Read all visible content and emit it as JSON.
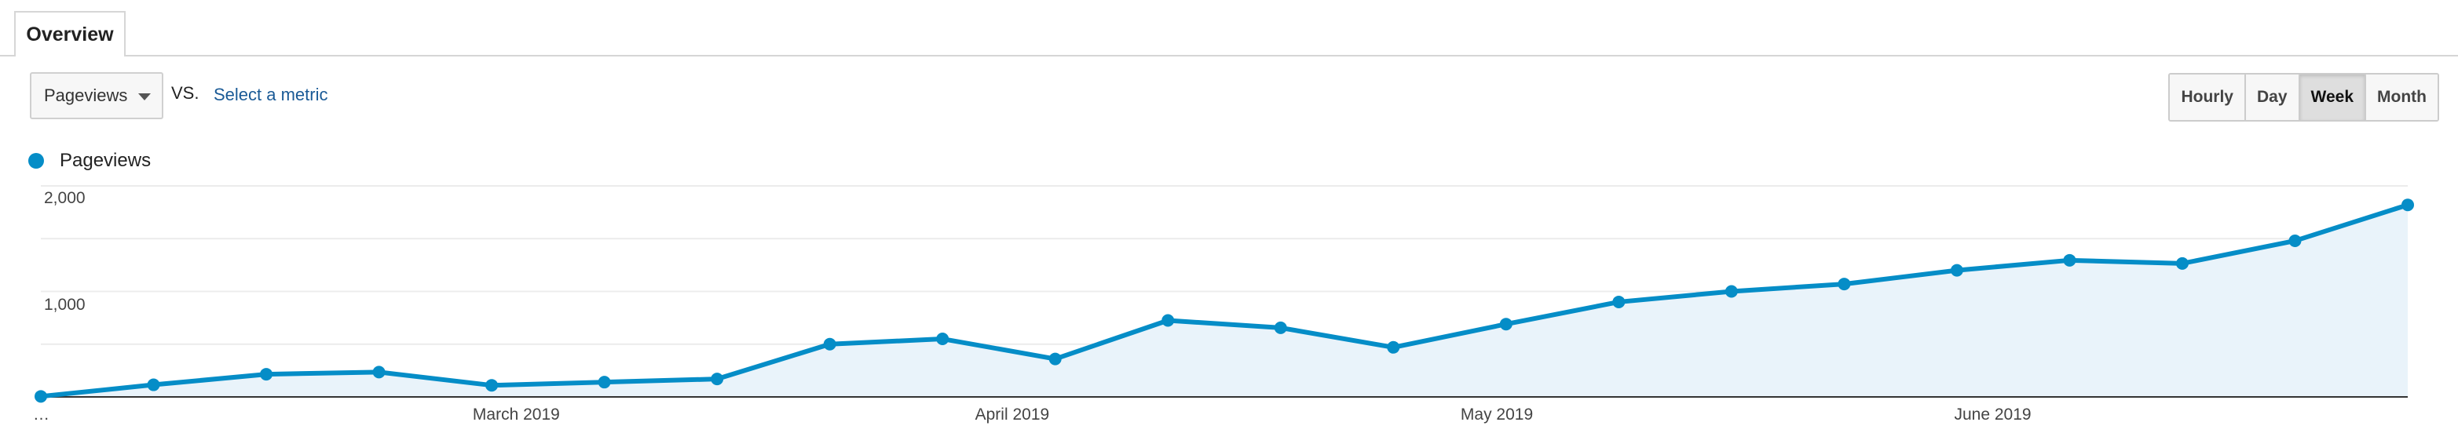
{
  "tabs": [
    {
      "label": "Overview",
      "active": true
    }
  ],
  "metric_selector": {
    "selected": "Pageviews",
    "vs_label": "VS.",
    "compare_link": "Select a metric"
  },
  "granularity": {
    "options": [
      "Hourly",
      "Day",
      "Week",
      "Month"
    ],
    "active": "Week"
  },
  "legend": {
    "label": "Pageviews",
    "color": "#058dc7"
  },
  "chart_data": {
    "type": "area",
    "title": "",
    "xlabel": "",
    "ylabel": "",
    "series": [
      {
        "name": "Pageviews",
        "values": [
          5,
          115,
          215,
          235,
          110,
          140,
          170,
          500,
          550,
          360,
          725,
          655,
          470,
          690,
          900,
          1000,
          1070,
          1200,
          1295,
          1265,
          1480,
          1820
        ]
      }
    ],
    "x_labels": [
      {
        "text": "…",
        "index": 0
      },
      {
        "text": "March 2019",
        "index": 3.8
      },
      {
        "text": "April 2019",
        "index": 8.2
      },
      {
        "text": "May 2019",
        "index": 12.5
      },
      {
        "text": "June 2019",
        "index": 16.9
      }
    ],
    "y_ticks": [
      "2,000",
      "1,000"
    ],
    "y_tick_values": [
      2000,
      1000
    ],
    "ylim": [
      0,
      2000
    ],
    "grid": true,
    "line_color": "#058dc7",
    "fill_color": "#e9f3fa"
  }
}
